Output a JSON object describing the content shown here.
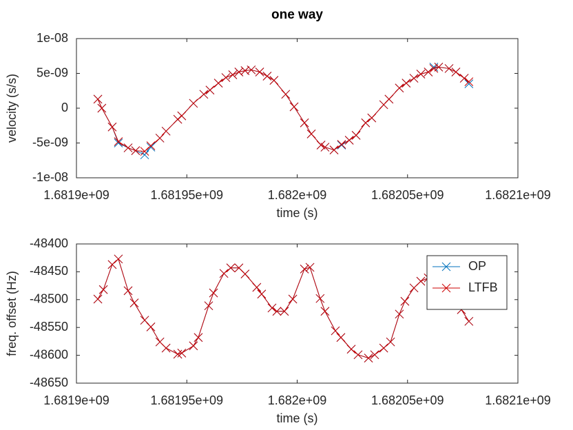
{
  "chart_data": [
    {
      "type": "line",
      "title": "one way",
      "xlabel": "time (s)",
      "ylabel": "velocity (s/s)",
      "xlim": [
        1681900000,
        1682100000
      ],
      "xticks": [
        {
          "value": 1681900000,
          "label": "1.6819e+09"
        },
        {
          "value": 1681950000,
          "label": "1.68195e+09"
        },
        {
          "value": 1682000000,
          "label": "1.682e+09"
        },
        {
          "value": 1682050000,
          "label": "1.68205e+09"
        },
        {
          "value": 1682100000,
          "label": "1.6821e+09"
        }
      ],
      "ylim": [
        -1e-08,
        1e-08
      ],
      "yticks": [
        {
          "value": -1e-08,
          "label": "-1e-08"
        },
        {
          "value": -5e-09,
          "label": "-5e-09"
        },
        0,
        {
          "value": 5e-09,
          "label": "5e-09"
        },
        {
          "value": 1e-08,
          "label": "1e-08"
        }
      ],
      "grid": false,
      "x": [
        1681909700,
        1681911500,
        1681916200,
        1681919000,
        1681923400,
        1681926800,
        1681930900,
        1681933700,
        1681937800,
        1681940600,
        1681945900,
        1681947700,
        1681953000,
        1681957700,
        1681960500,
        1681964300,
        1681967700,
        1681970800,
        1681973600,
        1681976400,
        1681979200,
        1681983000,
        1681986400,
        1681989500,
        1681994800,
        1681998600,
        1682003300,
        1682006400,
        1682010800,
        1682012600,
        1682016700,
        1682020100,
        1682023600,
        1682026700,
        1682031000,
        1682033800,
        1682039200,
        1682041600,
        1682046300,
        1682049400,
        1682052900,
        1682056000,
        1682059400,
        1682061900,
        1682064100,
        1682068800,
        1682071900,
        1682075700,
        1682077800
      ],
      "series": [
        {
          "color": "#0072bd",
          "marker": "x",
          "values": [
            1.3e-09,
            0,
            -2.7e-09,
            -5e-09,
            -5.7e-09,
            -6.1e-09,
            -6.7e-09,
            -5.6e-09,
            -4.3e-09,
            -3.3e-09,
            -1.6e-09,
            -1.1e-09,
            7e-10,
            2e-09,
            2.6e-09,
            3.6e-09,
            4.4e-09,
            4.8e-09,
            5.2e-09,
            5.4e-09,
            5.5e-09,
            5.2e-09,
            4.6e-09,
            4e-09,
            2e-09,
            2e-10,
            -2.1e-09,
            -3.7e-09,
            -5.3e-09,
            -5.6e-09,
            -6e-09,
            -5.3e-09,
            -4.6e-09,
            -3.9e-09,
            -2.1e-09,
            -1.4e-09,
            5e-10,
            1.3e-09,
            2.9e-09,
            3.6e-09,
            4.3e-09,
            4.9e-09,
            5.2e-09,
            5.9e-09,
            5.9e-09,
            5.7e-09,
            5.2e-09,
            4.3e-09,
            3.5e-09
          ]
        },
        {
          "color": "#cc0000",
          "marker": "x",
          "values": [
            1.3e-09,
            0,
            -2.7e-09,
            -4.8e-09,
            -5.7e-09,
            -6.1e-09,
            -6.2e-09,
            -5.4e-09,
            -4.3e-09,
            -3.3e-09,
            -1.6e-09,
            -1.1e-09,
            7e-10,
            2e-09,
            2.6e-09,
            3.6e-09,
            4.4e-09,
            4.8e-09,
            5.2e-09,
            5.4e-09,
            5.5e-09,
            5.2e-09,
            4.6e-09,
            4e-09,
            2e-09,
            2e-10,
            -2.1e-09,
            -3.7e-09,
            -5.3e-09,
            -5.6e-09,
            -6e-09,
            -5.2e-09,
            -4.6e-09,
            -3.9e-09,
            -2.1e-09,
            -1.4e-09,
            5e-10,
            1.3e-09,
            2.9e-09,
            3.6e-09,
            4.3e-09,
            4.9e-09,
            5.2e-09,
            5.7e-09,
            5.9e-09,
            5.7e-09,
            5.2e-09,
            4.3e-09,
            3.8e-09
          ]
        }
      ]
    },
    {
      "type": "line",
      "xlabel": "time (s)",
      "ylabel": "freq. offset (Hz)",
      "xlim": [
        1681900000,
        1682100000
      ],
      "xticks": [
        {
          "value": 1681900000,
          "label": "1.6819e+09"
        },
        {
          "value": 1681950000,
          "label": "1.68195e+09"
        },
        {
          "value": 1682000000,
          "label": "1.682e+09"
        },
        {
          "value": 1682050000,
          "label": "1.68205e+09"
        },
        {
          "value": 1682100000,
          "label": "1.6821e+09"
        }
      ],
      "ylim": [
        -48650,
        -48400
      ],
      "yticks": [
        -48650,
        -48600,
        -48550,
        -48500,
        -48450,
        -48400
      ],
      "grid": false,
      "legend": "upper right",
      "x": [
        1681909700,
        1681912200,
        1681916200,
        1681919000,
        1681923400,
        1681926200,
        1681930900,
        1681933700,
        1681937800,
        1681940600,
        1681945900,
        1681947700,
        1681953000,
        1681955200,
        1681959900,
        1681962100,
        1681966800,
        1681969900,
        1681973600,
        1681976400,
        1681981700,
        1681983900,
        1681988600,
        1681990800,
        1681994200,
        1681998000,
        1682003300,
        1682005800,
        1682010400,
        1682012600,
        1682017300,
        1682019800,
        1682024500,
        1682027600,
        1682032300,
        1682035100,
        1682039200,
        1682042300,
        1682046300,
        1682048800,
        1682052900,
        1682056000,
        1682059400,
        1682064100,
        1682067200,
        1682070700,
        1682074400,
        1682077800
      ],
      "series": [
        {
          "name": "OP",
          "color": "#0072bd",
          "marker": "x",
          "values": [
            -48499,
            -48482,
            -48437,
            -48427,
            -48484,
            -48506,
            -48537,
            -48549,
            -48576,
            -48587,
            -48598,
            -48596,
            -48583,
            -48568,
            -48511,
            -48488,
            -48453,
            -48443,
            -48443,
            -48454,
            -48478,
            -48490,
            -48515,
            -48521,
            -48521,
            -48499,
            -48445,
            -48442,
            -48498,
            -48521,
            -48556,
            -48568,
            -48589,
            -48599,
            -48605,
            -48599,
            -48587,
            -48576,
            -48526,
            -48503,
            -48479,
            -48467,
            -48461,
            -48461,
            -48472,
            -48489,
            -48518,
            -48539
          ]
        },
        {
          "name": "LTFB",
          "color": "#cc0000",
          "marker": "x",
          "values": [
            -48499,
            -48482,
            -48437,
            -48427,
            -48484,
            -48506,
            -48537,
            -48549,
            -48576,
            -48587,
            -48598,
            -48596,
            -48583,
            -48568,
            -48511,
            -48488,
            -48453,
            -48443,
            -48443,
            -48454,
            -48478,
            -48490,
            -48515,
            -48521,
            -48521,
            -48499,
            -48445,
            -48442,
            -48498,
            -48521,
            -48556,
            -48568,
            -48589,
            -48599,
            -48605,
            -48599,
            -48587,
            -48576,
            -48526,
            -48503,
            -48479,
            -48467,
            -48461,
            -48461,
            -48472,
            -48489,
            -48518,
            -48539
          ]
        }
      ]
    }
  ]
}
